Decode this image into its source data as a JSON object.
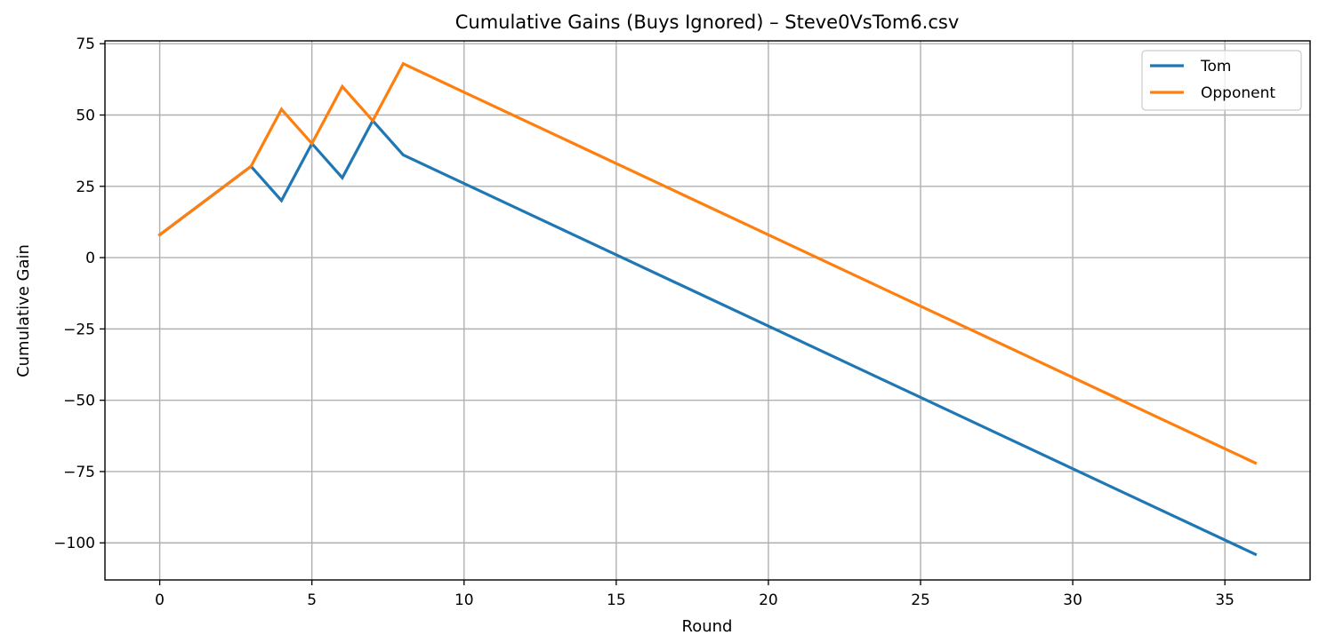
{
  "chart_data": {
    "type": "line",
    "title": "Cumulative Gains (Buys Ignored) – Steve0VsTom6.csv",
    "xlabel": "Round",
    "ylabel": "Cumulative Gain",
    "xlim": [
      -1.8,
      37.8
    ],
    "ylim": [
      -113,
      76
    ],
    "xticks": [
      0,
      5,
      10,
      15,
      20,
      25,
      30,
      35
    ],
    "xtick_labels": [
      "0",
      "5",
      "10",
      "15",
      "20",
      "25",
      "30",
      "35"
    ],
    "yticks": [
      75,
      50,
      25,
      0,
      -25,
      -50,
      -75,
      -100
    ],
    "ytick_labels": [
      "75",
      "50",
      "25",
      "0",
      "−25",
      "−50",
      "−75",
      "−100"
    ],
    "grid": true,
    "legend_position": "top-right",
    "series": [
      {
        "name": "Tom",
        "color": "#1f77b4",
        "points": [
          [
            0,
            8
          ],
          [
            3,
            32
          ],
          [
            4,
            20
          ],
          [
            5,
            40
          ],
          [
            6,
            28
          ],
          [
            7,
            48
          ],
          [
            8,
            36
          ],
          [
            36,
            -104
          ]
        ]
      },
      {
        "name": "Opponent",
        "color": "#ff7f0e",
        "points": [
          [
            0,
            8
          ],
          [
            3,
            32
          ],
          [
            4,
            52
          ],
          [
            5,
            40
          ],
          [
            6,
            60
          ],
          [
            7,
            48
          ],
          [
            8,
            68
          ],
          [
            36,
            -72
          ]
        ]
      }
    ]
  }
}
